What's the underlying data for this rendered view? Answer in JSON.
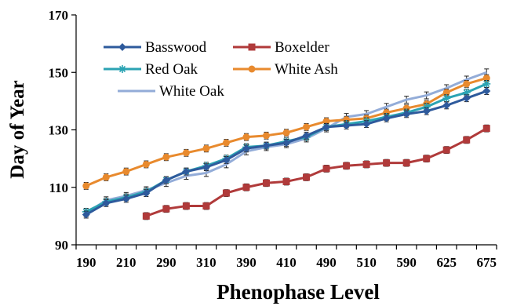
{
  "chart_data": {
    "type": "line",
    "title": "",
    "xlabel": "Phenophase Level",
    "ylabel": "Day of Year",
    "ylim": [
      90,
      170
    ],
    "yticks": [
      90,
      110,
      130,
      150,
      170
    ],
    "xtick_labels": [
      "190",
      "210",
      "290",
      "310",
      "390",
      "410",
      "490",
      "510",
      "590",
      "625",
      "675"
    ],
    "x": [
      "190",
      "200",
      "210",
      "250",
      "290",
      "300",
      "310",
      "330",
      "390",
      "400",
      "410",
      "450",
      "490",
      "500",
      "510",
      "550",
      "590",
      "600",
      "625",
      "650",
      "675"
    ],
    "grid": false,
    "legend_position": "top-left",
    "series": [
      {
        "name": "Basswood",
        "color": "#2e5a9c",
        "marker": "diamond",
        "values": [
          100.5,
          104.5,
          106,
          108,
          112.5,
          115.5,
          117,
          119.5,
          123.5,
          124.5,
          125.5,
          128,
          131,
          131.5,
          132,
          134,
          135.5,
          136.5,
          138.5,
          141,
          143.5
        ]
      },
      {
        "name": "Boxelder",
        "color": "#b03a3a",
        "marker": "square",
        "values": [
          null,
          null,
          null,
          100,
          102.5,
          103.5,
          103.5,
          108,
          110,
          111.5,
          112,
          113.5,
          116.5,
          117.5,
          118,
          118.5,
          118.5,
          120,
          123,
          126.5,
          130.5
        ]
      },
      {
        "name": "Red Oak",
        "color": "#2ba3b3",
        "marker": "asterisk",
        "values": [
          101.5,
          105,
          106.5,
          108.5,
          112.5,
          115.5,
          117.5,
          120,
          124,
          124.5,
          126,
          127.5,
          131,
          132,
          133,
          134.5,
          136,
          138,
          141,
          143,
          146
        ]
      },
      {
        "name": "White Ash",
        "color": "#e88a2e",
        "marker": "circle",
        "values": [
          110.5,
          113.5,
          115.5,
          118,
          120.5,
          122,
          123.5,
          125.5,
          127.5,
          128,
          129,
          131,
          133,
          133.5,
          134,
          136,
          137.5,
          139,
          143,
          146,
          148
        ]
      },
      {
        "name": "White Oak",
        "color": "#93acd8",
        "marker": "none",
        "values": [
          101,
          105.5,
          107,
          109,
          111.5,
          114,
          115,
          118,
          122.5,
          124,
          125,
          127,
          130.5,
          134.5,
          135.5,
          138,
          140.5,
          142,
          144.5,
          147.5,
          150
        ]
      }
    ]
  }
}
